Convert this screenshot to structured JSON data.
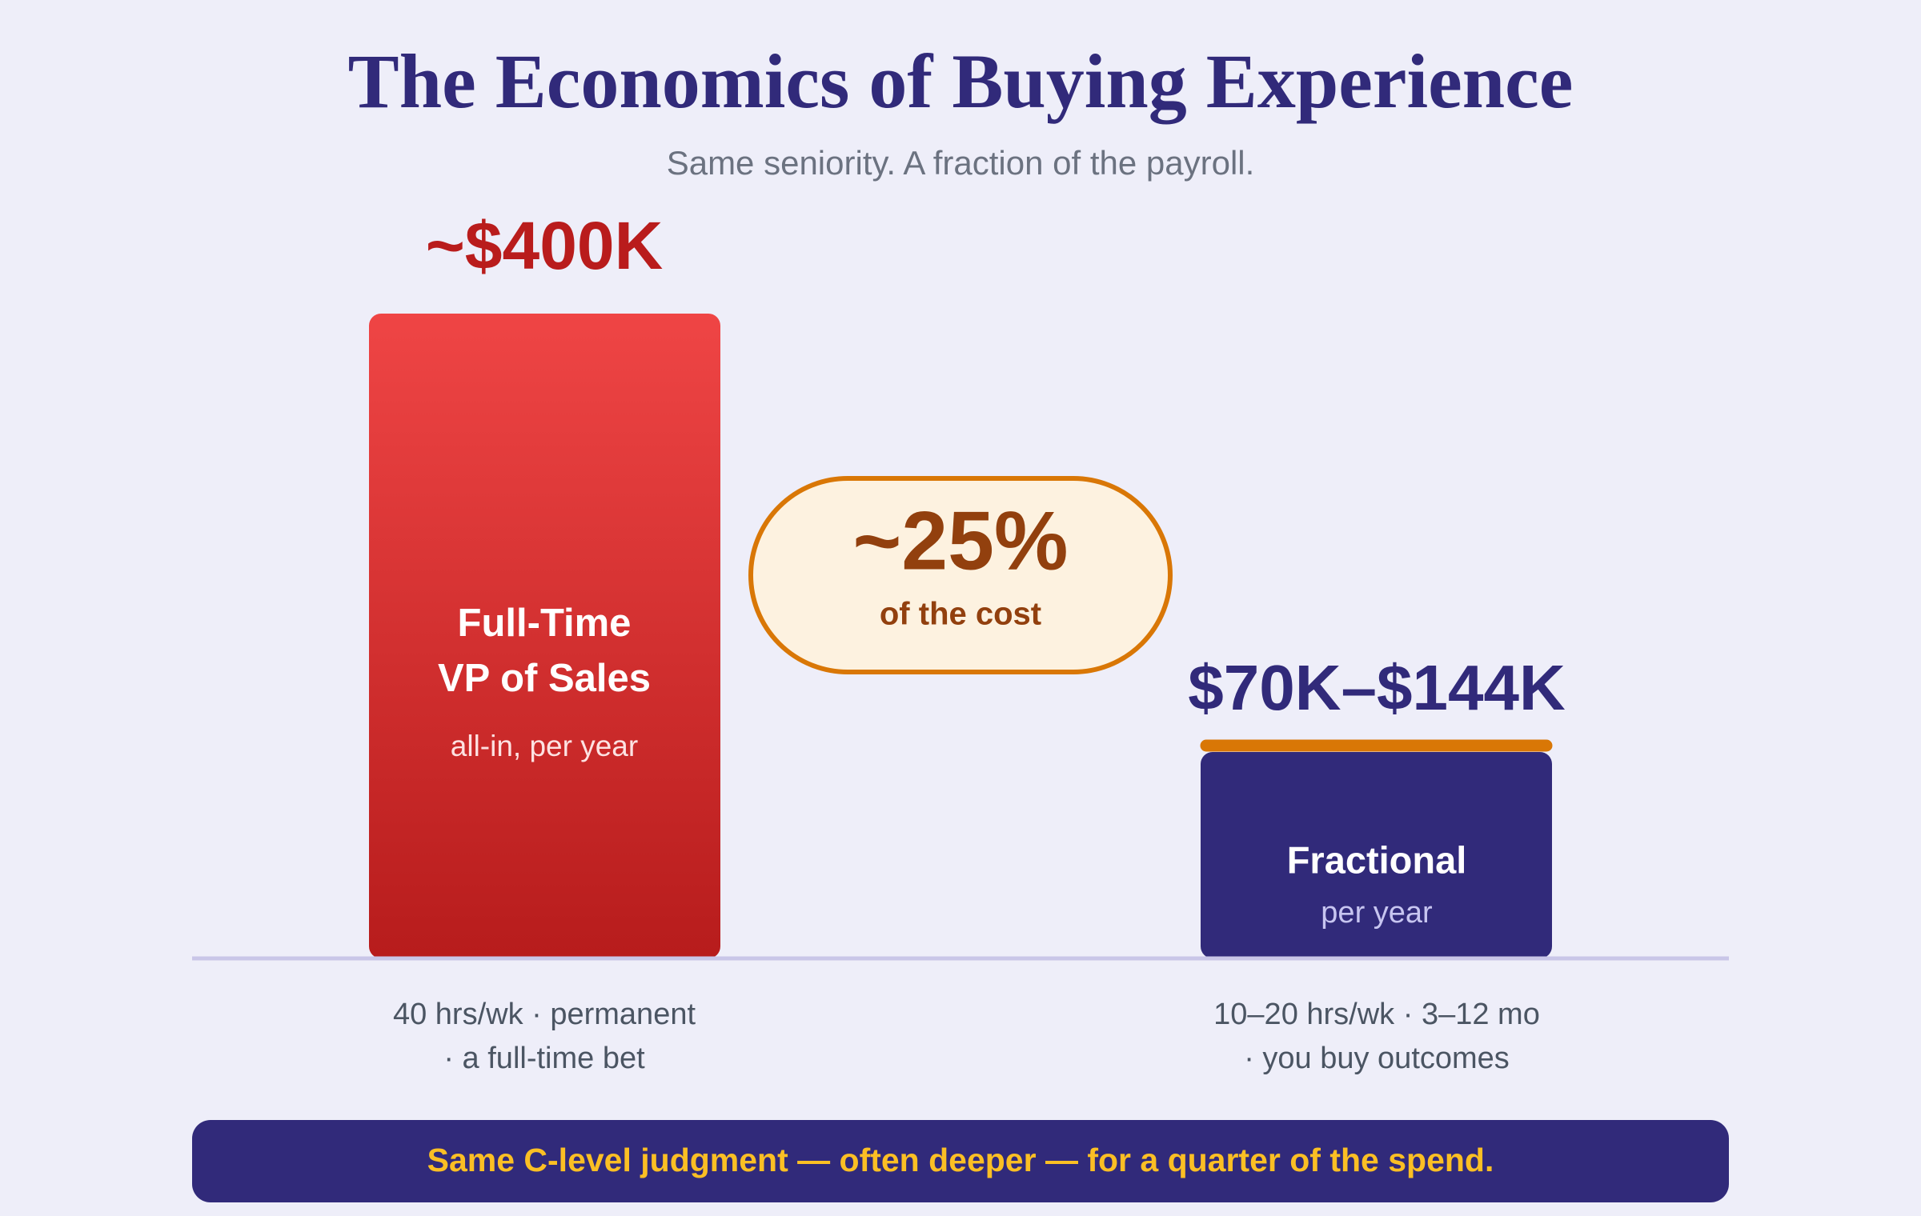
{
  "header": {
    "title": "The Economics of Buying Experience",
    "subtitle": "Same seniority. A fraction of the payroll."
  },
  "full_time": {
    "amount": "~$400K",
    "label_lines": [
      "Full-Time",
      "VP of Sales"
    ],
    "sublabel": "all-in, per year",
    "notes": [
      "40 hrs/wk · permanent",
      "· a full-time bet"
    ]
  },
  "comparison": {
    "percent": "~25%",
    "caption": "of the cost"
  },
  "fractional": {
    "amount": "$70K–$144K",
    "label": "Fractional",
    "sublabel": "per year",
    "notes": [
      "10–20 hrs/wk · 3–12 mo",
      "· you buy outcomes"
    ]
  },
  "footer": {
    "banner": "Same C-level judgment — often deeper — for a quarter of the spend."
  }
}
